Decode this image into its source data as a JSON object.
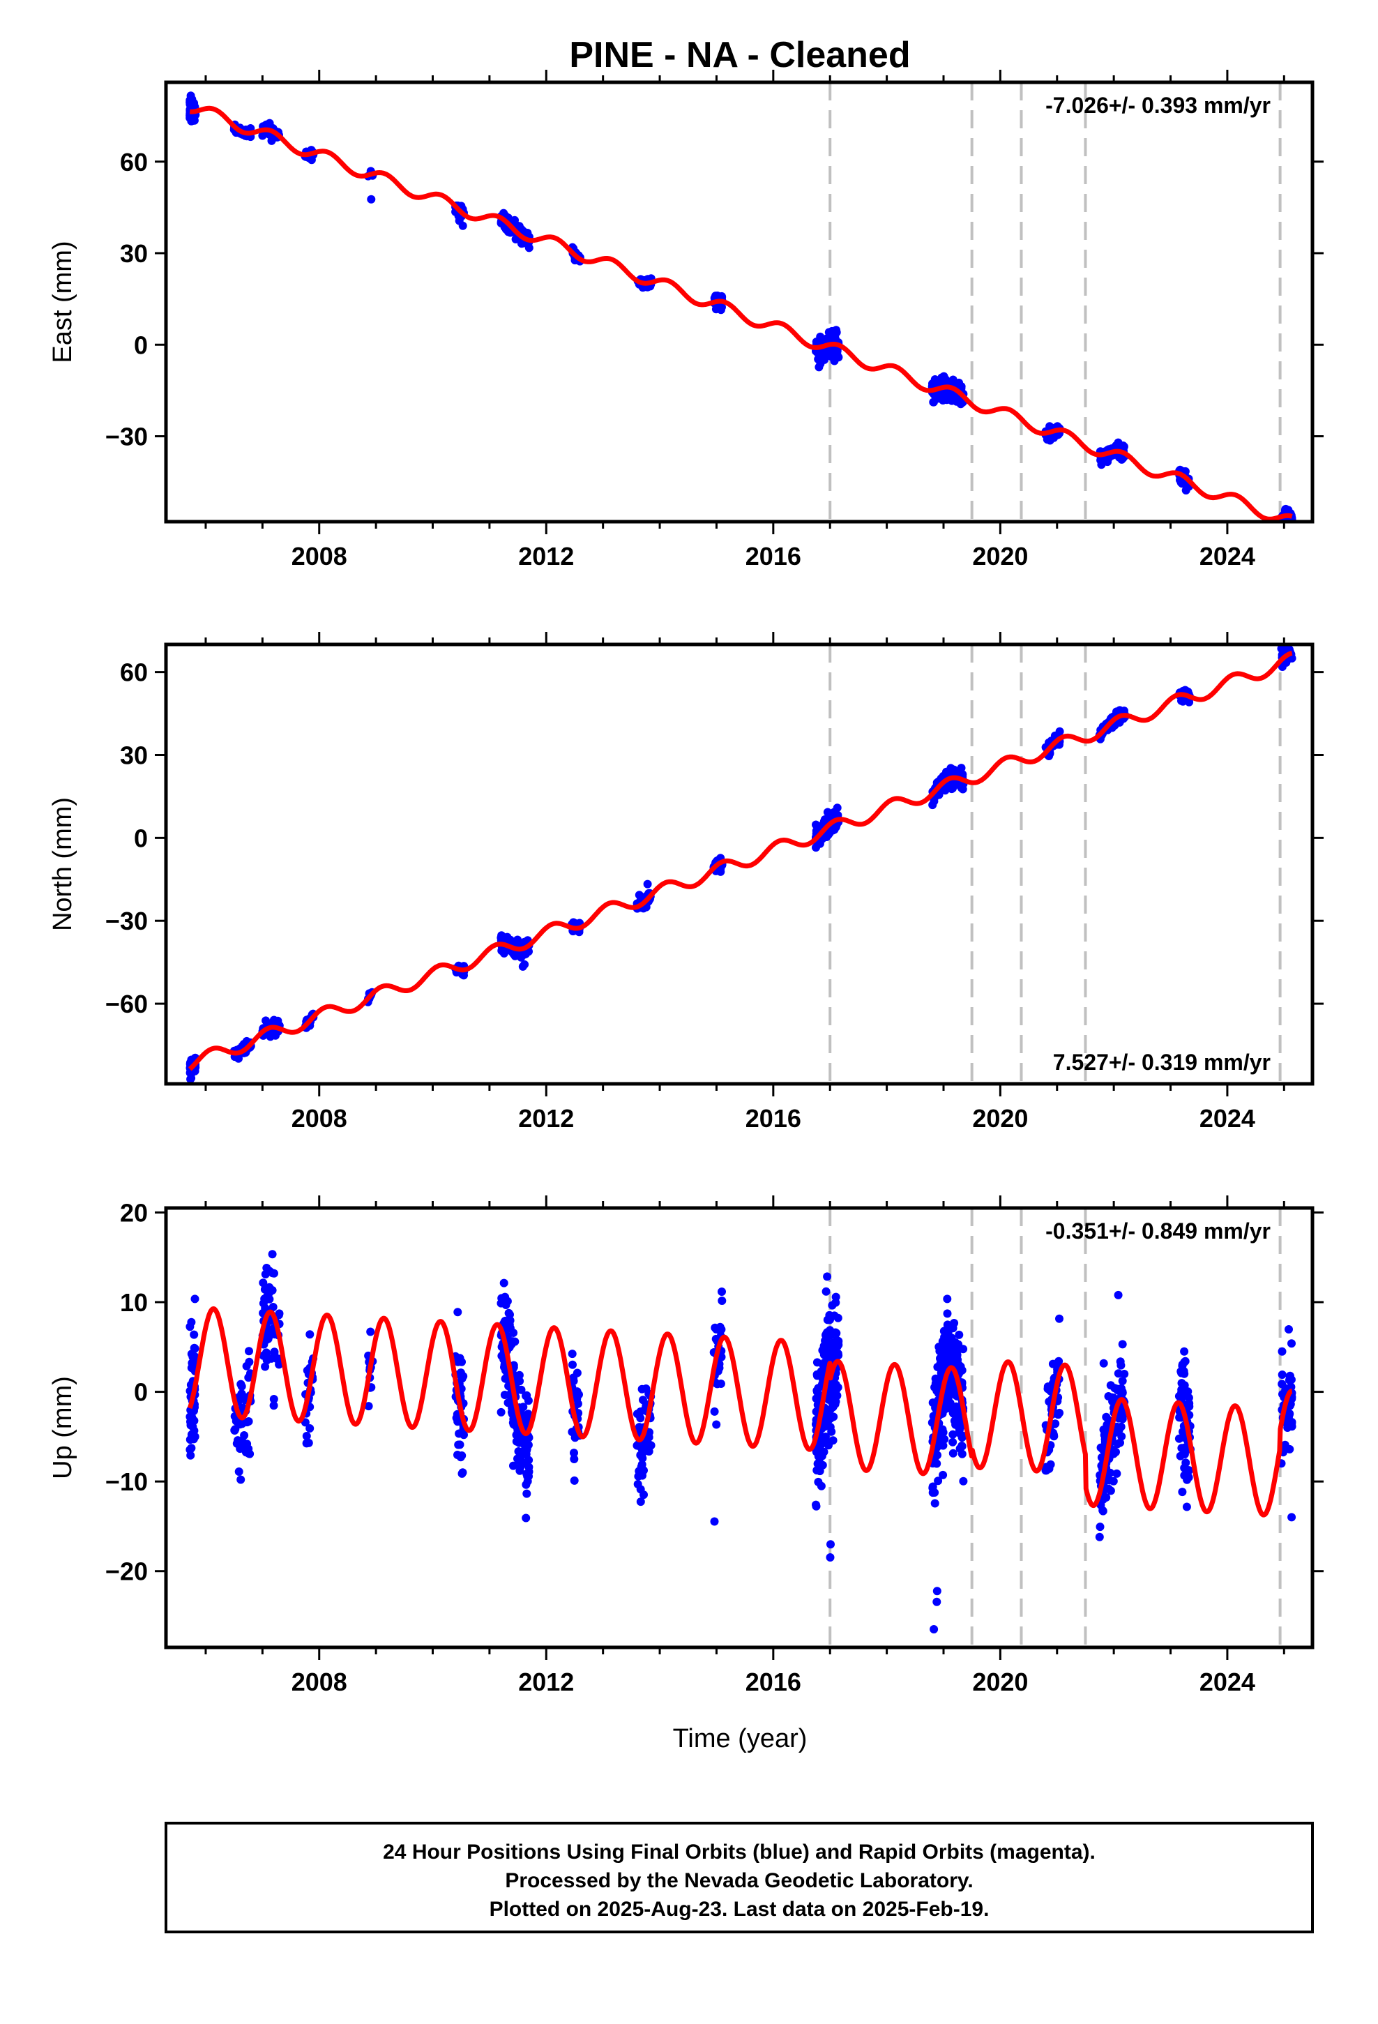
{
  "title": "PINE  - NA - Cleaned",
  "x_axis_label": "Time (year)",
  "footer": {
    "line1": "24 Hour Positions Using Final Orbits (blue) and Rapid Orbits (magenta).",
    "line2": "Processed by the Nevada Geodetic Laboratory.",
    "line3": "Plotted on 2025-Aug-23. Last data on 2025-Feb-19."
  },
  "colors": {
    "data": "#0000ff",
    "model": "#ff0000",
    "steps": "#c0c0c0",
    "frame": "#000000"
  },
  "chart_data": [
    {
      "type": "scatter",
      "panel": "east",
      "ylabel": "East (mm)",
      "rate_label": "-7.026+/- 0.393 mm/yr",
      "rate_label_position": "top-right",
      "xlim": [
        2005.3,
        2025.5
      ],
      "ylim": [
        -58,
        86
      ],
      "xticks": [
        2008,
        2012,
        2016,
        2020,
        2024
      ],
      "yticks": [
        60,
        30,
        0,
        -30
      ],
      "ytick_labels": [
        "60",
        "30",
        "0",
        "−30"
      ],
      "step_dates": [
        2017.0,
        2019.5,
        2020.37,
        2021.5,
        2024.93
      ],
      "model": {
        "ref_year": 2016.85,
        "offset": 0.0,
        "rate": -7.026,
        "annual_amp": 2.0,
        "annual_phase": 0.6,
        "breaks": []
      },
      "clusters": [
        {
          "t0": 2005.72,
          "t1": 2005.82,
          "resid": [
            [
              80,
              2.5
            ],
            [
              6,
              3.5
            ]
          ]
        },
        {
          "t0": 2006.5,
          "t1": 2006.8,
          "resid": [
            [
              40,
              1.0
            ]
          ]
        },
        {
          "t0": 2007.0,
          "t1": 2007.3,
          "resid": [
            [
              45,
              1.5
            ]
          ]
        },
        {
          "t0": 2007.75,
          "t1": 2007.9,
          "resid": [
            [
              20,
              1.2
            ]
          ]
        },
        {
          "t0": 2008.85,
          "t1": 2008.95,
          "resid": [
            [
              8,
              1.0
            ],
            [
              1,
              -9
            ]
          ]
        },
        {
          "t0": 2010.4,
          "t1": 2010.55,
          "resid": [
            [
              28,
              1.5
            ],
            [
              2,
              -4
            ]
          ]
        },
        {
          "t0": 2011.2,
          "t1": 2011.7,
          "resid": [
            [
              130,
              2.0
            ]
          ]
        },
        {
          "t0": 2012.45,
          "t1": 2012.6,
          "resid": [
            [
              22,
              1.5
            ]
          ]
        },
        {
          "t0": 2013.6,
          "t1": 2013.85,
          "resid": [
            [
              40,
              1.0
            ]
          ]
        },
        {
          "t0": 2014.95,
          "t1": 2015.1,
          "resid": [
            [
              25,
              1.8
            ]
          ]
        },
        {
          "t0": 2016.75,
          "t1": 2017.15,
          "resid": [
            [
              150,
              2.5
            ],
            [
              3,
              -6
            ]
          ]
        },
        {
          "t0": 2018.8,
          "t1": 2019.35,
          "resid": [
            [
              180,
              2.5
            ],
            [
              3,
              -4
            ]
          ]
        },
        {
          "t0": 2020.8,
          "t1": 2021.05,
          "resid": [
            [
              45,
              1.5
            ]
          ]
        },
        {
          "t0": 2021.75,
          "t1": 2022.2,
          "resid": [
            [
              90,
              1.8
            ]
          ]
        },
        {
          "t0": 2023.15,
          "t1": 2023.35,
          "resid": [
            [
              35,
              1.8
            ]
          ]
        },
        {
          "t0": 2024.95,
          "t1": 2025.14,
          "resid": [
            [
              40,
              2.0
            ]
          ]
        }
      ]
    },
    {
      "type": "scatter",
      "panel": "north",
      "ylabel": "North (mm)",
      "rate_label": "7.527+/- 0.319 mm/yr",
      "rate_label_position": "bottom-right",
      "xlim": [
        2005.3,
        2025.5
      ],
      "ylim": [
        -89,
        70
      ],
      "xticks": [
        2008,
        2012,
        2016,
        2020,
        2024
      ],
      "yticks": [
        60,
        30,
        0,
        -30,
        -60
      ],
      "ytick_labels": [
        "60",
        "30",
        "0",
        "−30",
        "−60"
      ],
      "step_dates": [
        2017.0,
        2019.5,
        2020.37,
        2021.5,
        2024.93
      ],
      "model": {
        "ref_year": 2016.85,
        "offset": 2.0,
        "rate": 7.527,
        "annual_amp": 2.5,
        "annual_phase": 0.9,
        "breaks": []
      },
      "clusters": [
        {
          "t0": 2005.72,
          "t1": 2005.82,
          "resid": [
            [
              60,
              2.0
            ]
          ]
        },
        {
          "t0": 2006.5,
          "t1": 2006.8,
          "resid": [
            [
              40,
              1.5
            ]
          ]
        },
        {
          "t0": 2007.0,
          "t1": 2007.3,
          "resid": [
            [
              45,
              1.8
            ]
          ]
        },
        {
          "t0": 2007.75,
          "t1": 2007.9,
          "resid": [
            [
              20,
              1.5
            ]
          ]
        },
        {
          "t0": 2008.85,
          "t1": 2008.95,
          "resid": [
            [
              8,
              1.5
            ]
          ]
        },
        {
          "t0": 2010.4,
          "t1": 2010.55,
          "resid": [
            [
              28,
              1.5
            ]
          ]
        },
        {
          "t0": 2011.2,
          "t1": 2011.7,
          "resid": [
            [
              130,
              2.0
            ],
            [
              2,
              -6
            ]
          ]
        },
        {
          "t0": 2012.45,
          "t1": 2012.6,
          "resid": [
            [
              22,
              1.5
            ]
          ]
        },
        {
          "t0": 2013.6,
          "t1": 2013.85,
          "resid": [
            [
              40,
              1.5
            ],
            [
              2,
              5
            ]
          ]
        },
        {
          "t0": 2014.95,
          "t1": 2015.1,
          "resid": [
            [
              25,
              1.8
            ]
          ]
        },
        {
          "t0": 2016.75,
          "t1": 2017.15,
          "resid": [
            [
              150,
              2.2
            ],
            [
              3,
              5
            ]
          ]
        },
        {
          "t0": 2018.8,
          "t1": 2019.35,
          "resid": [
            [
              180,
              2.2
            ]
          ]
        },
        {
          "t0": 2020.8,
          "t1": 2021.05,
          "resid": [
            [
              45,
              1.5
            ]
          ]
        },
        {
          "t0": 2021.75,
          "t1": 2022.2,
          "resid": [
            [
              90,
              1.5
            ]
          ]
        },
        {
          "t0": 2023.15,
          "t1": 2023.35,
          "resid": [
            [
              35,
              1.5
            ]
          ]
        },
        {
          "t0": 2024.95,
          "t1": 2025.14,
          "resid": [
            [
              40,
              2.0
            ],
            [
              3,
              4
            ]
          ]
        }
      ]
    },
    {
      "type": "scatter",
      "panel": "up",
      "ylabel": "Up (mm)",
      "rate_label": "-0.351+/- 0.849 mm/yr",
      "rate_label_position": "top-right",
      "xlim": [
        2005.3,
        2025.5
      ],
      "ylim": [
        -28.5,
        20.5
      ],
      "xticks": [
        2008,
        2012,
        2016,
        2020,
        2024
      ],
      "yticks": [
        20,
        10,
        0,
        -10,
        -20
      ],
      "ytick_labels": [
        "20",
        "10",
        "0",
        "−10",
        "−20"
      ],
      "step_dates": [
        2017.0,
        2019.5,
        2020.37,
        2021.5,
        2024.93
      ],
      "model": {
        "ref_year": 2016.85,
        "offset": -0.5,
        "rate": -0.351,
        "annual_amp": 6.0,
        "annual_phase": 0.7,
        "breaks": [
          [
            2017.0,
            -2.0
          ],
          [
            2019.5,
            1.0
          ],
          [
            2021.5,
            -3.5
          ],
          [
            2024.93,
            2.0
          ]
        ]
      },
      "clusters": [
        {
          "t0": 2005.72,
          "t1": 2005.82,
          "resid": [
            [
              60,
              3.5
            ],
            [
              3,
              9
            ]
          ]
        },
        {
          "t0": 2006.5,
          "t1": 2006.8,
          "resid": [
            [
              50,
              4.5
            ]
          ]
        },
        {
          "t0": 2007.0,
          "t1": 2007.3,
          "resid": [
            [
              60,
              4.5
            ],
            [
              2,
              -10
            ]
          ]
        },
        {
          "t0": 2007.75,
          "t1": 2007.9,
          "resid": [
            [
              25,
              4.0
            ]
          ]
        },
        {
          "t0": 2008.85,
          "t1": 2008.95,
          "resid": [
            [
              12,
              4.0
            ]
          ]
        },
        {
          "t0": 2010.4,
          "t1": 2010.55,
          "resid": [
            [
              45,
              4.5
            ]
          ]
        },
        {
          "t0": 2011.2,
          "t1": 2011.7,
          "resid": [
            [
              180,
              4.5
            ]
          ]
        },
        {
          "t0": 2012.45,
          "t1": 2012.6,
          "resid": [
            [
              30,
              4.5
            ]
          ]
        },
        {
          "t0": 2013.6,
          "t1": 2013.85,
          "resid": [
            [
              60,
              4.0
            ]
          ]
        },
        {
          "t0": 2014.95,
          "t1": 2015.1,
          "resid": [
            [
              28,
              4.0
            ],
            [
              1,
              -18
            ]
          ]
        },
        {
          "t0": 2016.75,
          "t1": 2017.15,
          "resid": [
            [
              200,
              5.0
            ],
            [
              2,
              -20
            ]
          ]
        },
        {
          "t0": 2018.8,
          "t1": 2019.35,
          "resid": [
            [
              260,
              5.0
            ],
            [
              3,
              -20
            ]
          ]
        },
        {
          "t0": 2020.8,
          "t1": 2021.05,
          "resid": [
            [
              60,
              3.5
            ]
          ]
        },
        {
          "t0": 2021.75,
          "t1": 2022.2,
          "resid": [
            [
              120,
              4.0
            ],
            [
              2,
              12
            ]
          ]
        },
        {
          "t0": 2023.15,
          "t1": 2023.35,
          "resid": [
            [
              70,
              4.5
            ],
            [
              2,
              -10
            ]
          ]
        },
        {
          "t0": 2024.95,
          "t1": 2025.14,
          "resid": [
            [
              45,
              4.0
            ],
            [
              1,
              -14
            ]
          ]
        }
      ]
    }
  ]
}
